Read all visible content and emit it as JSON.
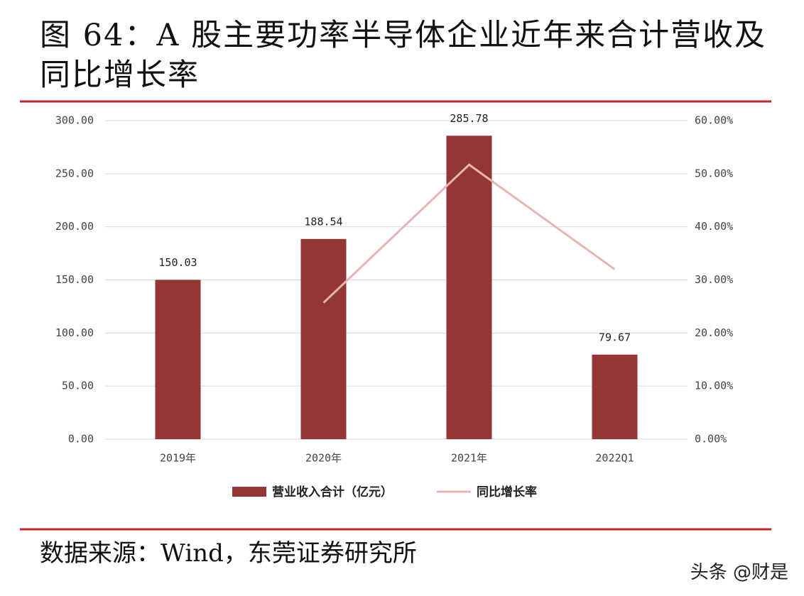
{
  "chart_data": {
    "type": "bar-line",
    "title": "图 64：A 股主要功率半导体企业近年来合计营收及同比增长率",
    "categories": [
      "2019年",
      "2020年",
      "2021年",
      "2022Q1"
    ],
    "series": [
      {
        "name": "营业收入合计（亿元）",
        "type": "bar",
        "color": "#943634",
        "values": [
          150.03,
          188.54,
          285.78,
          79.67
        ]
      },
      {
        "name": "同比增长率",
        "type": "line",
        "color": "#e8b4b0",
        "axis": "y2",
        "values": [
          null,
          25.7,
          51.7,
          32.0
        ]
      }
    ],
    "ylim": [
      0,
      300
    ],
    "yticks": [
      {
        "value": 0,
        "label": "0.00"
      },
      {
        "value": 50,
        "label": "50.00"
      },
      {
        "value": 100,
        "label": "100.00"
      },
      {
        "value": 150,
        "label": "150.00"
      },
      {
        "value": 200,
        "label": "200.00"
      },
      {
        "value": 250,
        "label": "250.00"
      },
      {
        "value": 300,
        "label": "300.00"
      }
    ],
    "y2lim": [
      0,
      60
    ],
    "y2ticks": [
      {
        "value": 0,
        "label": "0.00%"
      },
      {
        "value": 10,
        "label": "10.00%"
      },
      {
        "value": 20,
        "label": "20.00%"
      },
      {
        "value": 30,
        "label": "30.00%"
      },
      {
        "value": 40,
        "label": "40.00%"
      },
      {
        "value": 50,
        "label": "50.00%"
      },
      {
        "value": 60,
        "label": "60.00%"
      }
    ],
    "grid": true,
    "legend": "bottom",
    "source": "数据来源：Wind，东莞证券研究所",
    "watermark": "头条 @财是"
  }
}
